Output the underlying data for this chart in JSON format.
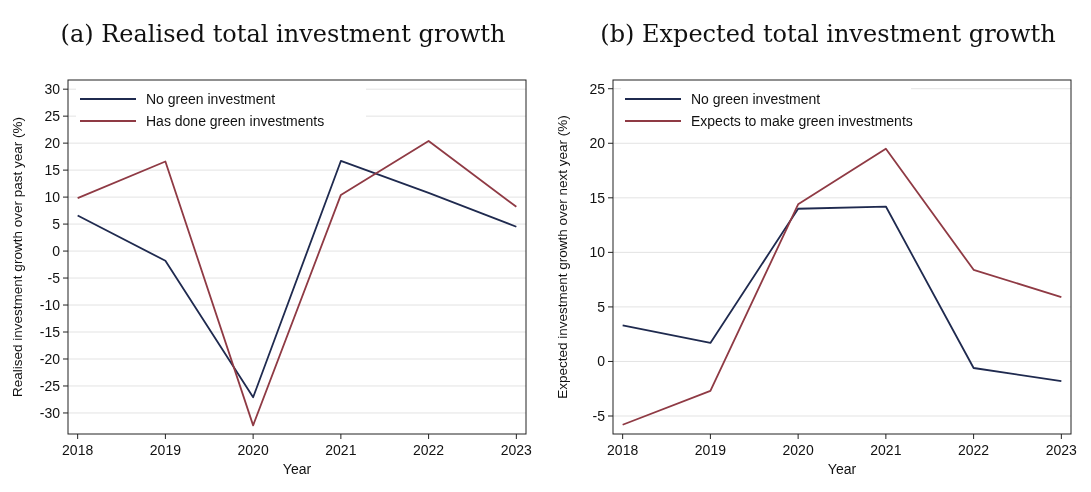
{
  "chart_data": [
    {
      "type": "line",
      "title": "(a) Realised total investment growth",
      "xlabel": "Year",
      "ylabel": "Realised investment growth over past year (%)",
      "x": [
        2018,
        2019,
        2020,
        2021,
        2022,
        2023
      ],
      "series": [
        {
          "name": "No green investment",
          "color": "#1f2a4f",
          "values": [
            6.6,
            -1.8,
            -27.1,
            16.7,
            10.8,
            4.5
          ]
        },
        {
          "name": "Has done green investments",
          "color": "#8f3a44",
          "values": [
            9.8,
            16.6,
            -32.3,
            10.4,
            20.4,
            8.2
          ]
        }
      ],
      "xlim": [
        2017.89,
        2023.11
      ],
      "xticks": [
        2018,
        2019,
        2020,
        2021,
        2022,
        2023
      ],
      "ylim": [
        -33.9,
        31.7
      ],
      "yticks": [
        -30,
        -25,
        -20,
        -15,
        -10,
        -5,
        0,
        5,
        10,
        15,
        20,
        25,
        30
      ],
      "grid": "y",
      "legend": "top left",
      "marker": "none",
      "line_style": "solid"
    },
    {
      "type": "line",
      "title": "(b) Expected total investment growth",
      "xlabel": "Year",
      "ylabel": "Expected investment growth over next year (%)",
      "x": [
        2018,
        2019,
        2020,
        2021,
        2022,
        2023
      ],
      "series": [
        {
          "name": "No green investment",
          "color": "#1f2a4f",
          "values": [
            3.3,
            1.7,
            14.0,
            14.2,
            -0.6,
            -1.8
          ]
        },
        {
          "name": "Expects to make green investments",
          "color": "#8f3a44",
          "values": [
            -5.8,
            -2.7,
            14.4,
            19.5,
            8.4,
            5.9
          ]
        }
      ],
      "xlim": [
        2017.89,
        2023.11
      ],
      "xticks": [
        2018,
        2019,
        2020,
        2021,
        2022,
        2023
      ],
      "ylim": [
        -6.65,
        25.8
      ],
      "yticks": [
        -5,
        0,
        5,
        10,
        15,
        20,
        25
      ],
      "grid": "y",
      "legend": "top left",
      "marker": "none",
      "line_style": "solid"
    }
  ]
}
